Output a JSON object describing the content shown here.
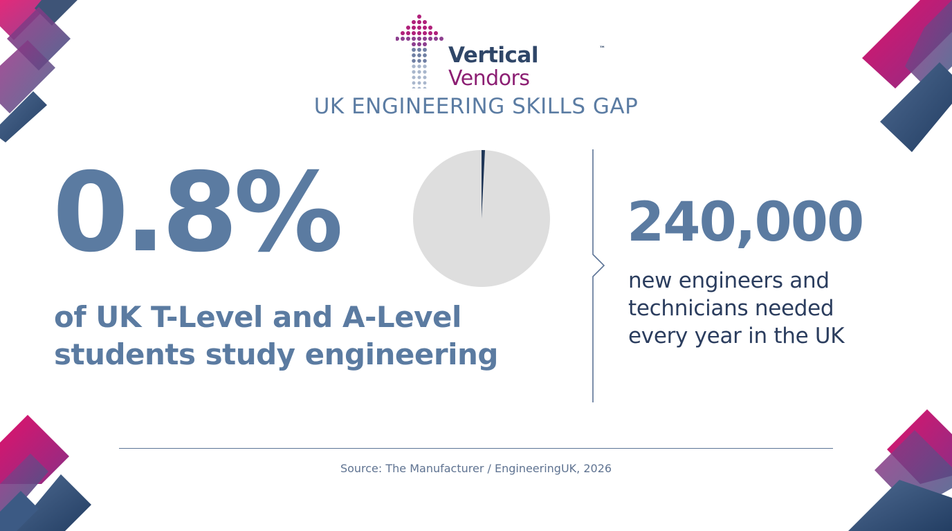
{
  "brand": {
    "name_line1": "Vertical",
    "name_line2": "Vendors",
    "trademark": "™",
    "logo_icon": "dotted-up-arrow-icon",
    "colors": {
      "navy": "#2f4668",
      "magenta": "#8c1f73",
      "pink": "#c2185b"
    }
  },
  "title": "UK ENGINEERING SKILLS GAP",
  "stat_left": {
    "value": "0.8%",
    "description_line1": "of UK T-Level and A-Level",
    "description_line2": "students study engineering",
    "pie_fraction": 0.008
  },
  "stat_right": {
    "value": "240,000",
    "description_line1": "new engineers and",
    "description_line2": "technicians needed",
    "description_line3": "every year in the UK"
  },
  "source": "Source: The Manufacturer / EngineeringUK, 2026",
  "colors": {
    "stat_blue": "#5b7ba1",
    "pie_background": "#dedede",
    "pie_slice": "#1f3657",
    "accent_pink": "#d61f6e",
    "accent_purple": "#6a3f8c",
    "accent_navy": "#2c4a6e"
  }
}
